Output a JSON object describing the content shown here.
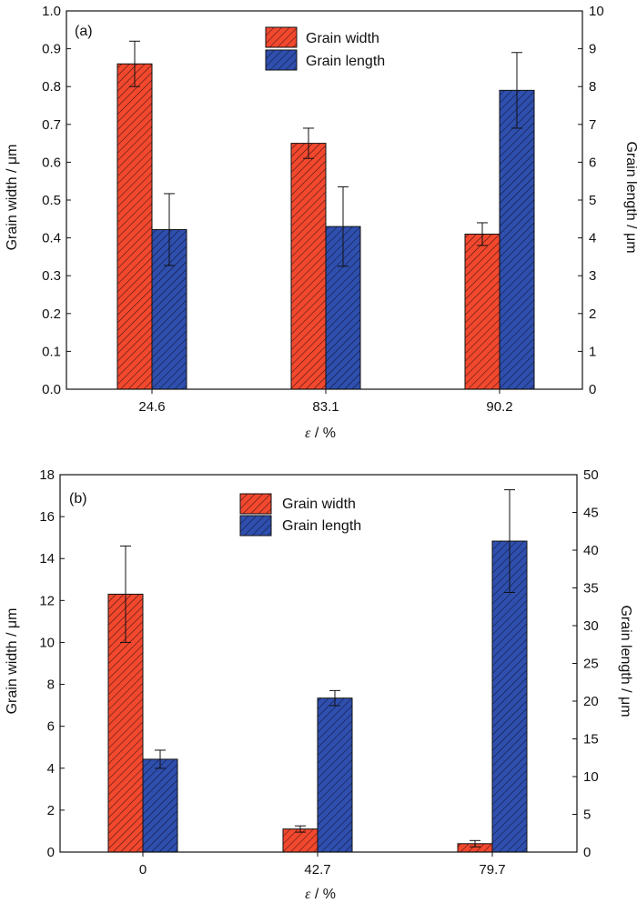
{
  "colors": {
    "width_fill": "#f2482e",
    "length_fill": "#2f4fae",
    "hatch": "#3a1410",
    "axis": "#111111"
  },
  "chart_data": [
    {
      "type": "bar",
      "panel_label": "(a)",
      "categories": [
        "24.6",
        "83.1",
        "90.2"
      ],
      "xlabel": "ε / %",
      "xlabel_symbol": "ε",
      "xlabel_unit": " / %",
      "ylabel": "Grain width / μm",
      "y2label": "Grain length / μm",
      "ylim": [
        0,
        1.0
      ],
      "y2lim": [
        0,
        10
      ],
      "yticks": [
        "0.0",
        "0.1",
        "0.2",
        "0.3",
        "0.4",
        "0.5",
        "0.6",
        "0.7",
        "0.8",
        "0.9",
        "1.0"
      ],
      "y2ticks": [
        "0",
        "1",
        "2",
        "3",
        "4",
        "5",
        "6",
        "7",
        "8",
        "9",
        "10"
      ],
      "legend_position": "top-center",
      "grid": false,
      "series": [
        {
          "name": "Grain width",
          "axis": "left",
          "values": [
            0.86,
            0.65,
            0.41
          ],
          "errors": [
            0.06,
            0.04,
            0.03
          ]
        },
        {
          "name": "Grain length",
          "axis": "right",
          "values": [
            4.22,
            4.3,
            7.9
          ],
          "errors": [
            0.95,
            1.05,
            1.0
          ]
        }
      ]
    },
    {
      "type": "bar",
      "panel_label": "(b)",
      "categories": [
        "0",
        "42.7",
        "79.7"
      ],
      "xlabel": "ε / %",
      "xlabel_symbol": "ε",
      "xlabel_unit": " / %",
      "ylabel": "Grain width / μm",
      "y2label": "Grain length / μm",
      "ylim": [
        0,
        18
      ],
      "y2lim": [
        0,
        50
      ],
      "yticks": [
        "0",
        "2",
        "4",
        "6",
        "8",
        "10",
        "12",
        "14",
        "16",
        "18"
      ],
      "y2ticks": [
        "0",
        "5",
        "10",
        "15",
        "20",
        "25",
        "30",
        "35",
        "40",
        "45",
        "50"
      ],
      "legend_position": "top-center",
      "grid": false,
      "series": [
        {
          "name": "Grain width",
          "axis": "left",
          "values": [
            12.3,
            1.1,
            0.4
          ],
          "errors": [
            2.3,
            0.15,
            0.15
          ]
        },
        {
          "name": "Grain length",
          "axis": "right",
          "values": [
            12.3,
            20.4,
            41.2
          ],
          "errors": [
            1.2,
            1.0,
            6.8
          ]
        }
      ]
    }
  ]
}
